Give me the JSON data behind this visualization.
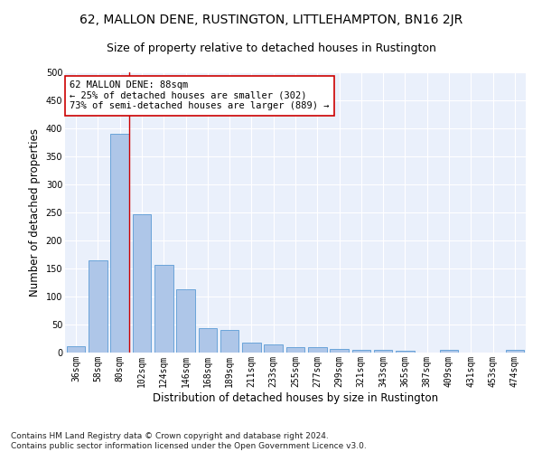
{
  "title": "62, MALLON DENE, RUSTINGTON, LITTLEHAMPTON, BN16 2JR",
  "subtitle": "Size of property relative to detached houses in Rustington",
  "xlabel": "Distribution of detached houses by size in Rustington",
  "ylabel": "Number of detached properties",
  "categories": [
    "36sqm",
    "58sqm",
    "80sqm",
    "102sqm",
    "124sqm",
    "146sqm",
    "168sqm",
    "189sqm",
    "211sqm",
    "233sqm",
    "255sqm",
    "277sqm",
    "299sqm",
    "321sqm",
    "343sqm",
    "365sqm",
    "387sqm",
    "409sqm",
    "431sqm",
    "453sqm",
    "474sqm"
  ],
  "values": [
    12,
    165,
    390,
    247,
    157,
    113,
    44,
    40,
    18,
    15,
    9,
    9,
    6,
    5,
    5,
    4,
    0,
    5,
    0,
    0,
    5
  ],
  "bar_color": "#aec6e8",
  "bar_edge_color": "#5b9bd5",
  "marker_bin_index": 2,
  "marker_color": "#cc0000",
  "annotation_text": "62 MALLON DENE: 88sqm\n← 25% of detached houses are smaller (302)\n73% of semi-detached houses are larger (889) →",
  "annotation_box_color": "#ffffff",
  "annotation_box_edge": "#cc0000",
  "ylim": [
    0,
    500
  ],
  "yticks": [
    0,
    50,
    100,
    150,
    200,
    250,
    300,
    350,
    400,
    450,
    500
  ],
  "background_color": "#eaf0fb",
  "grid_color": "#ffffff",
  "footer": "Contains HM Land Registry data © Crown copyright and database right 2024.\nContains public sector information licensed under the Open Government Licence v3.0.",
  "title_fontsize": 10,
  "subtitle_fontsize": 9,
  "axis_label_fontsize": 8.5,
  "tick_fontsize": 7,
  "footer_fontsize": 6.5,
  "annotation_fontsize": 7.5
}
